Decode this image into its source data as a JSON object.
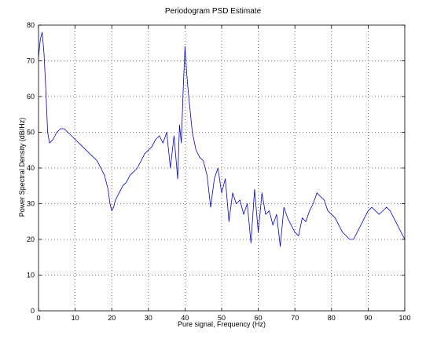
{
  "chart_data": {
    "type": "line",
    "title": "Periodogram PSD Estimate",
    "xlabel": "Pure signal, Frequency (Hz)",
    "ylabel": "Power Spectral Density (dB/Hz)",
    "xlim": [
      0,
      100
    ],
    "ylim": [
      0,
      80
    ],
    "xticks": [
      0,
      10,
      20,
      30,
      40,
      50,
      60,
      70,
      80,
      90,
      100
    ],
    "yticks": [
      0,
      10,
      20,
      30,
      40,
      50,
      60,
      70,
      80
    ],
    "grid": true,
    "line_color": "#0000cc",
    "series": [
      {
        "x": [
          0,
          0.5,
          1,
          1.5,
          2,
          2.5,
          3,
          4,
          5,
          6,
          7,
          8,
          9,
          10,
          11,
          12,
          13,
          14,
          15,
          16,
          17,
          18,
          19,
          19.5,
          20,
          20.5,
          21,
          22,
          23,
          24,
          25,
          26,
          27,
          28,
          29,
          30,
          31,
          32,
          33,
          34,
          35,
          36,
          37,
          38,
          38.5,
          39,
          39.5,
          40,
          40.5,
          41,
          41.5,
          42,
          43,
          44,
          45,
          46,
          47,
          48,
          49,
          50,
          51,
          52,
          53,
          54,
          55,
          56,
          57,
          58,
          59,
          60,
          61,
          62,
          63,
          64,
          65,
          66,
          67,
          68,
          69,
          70,
          71,
          72,
          73,
          74,
          75,
          76,
          77,
          78,
          79,
          80,
          81,
          82,
          83,
          84,
          85,
          86,
          87,
          88,
          89,
          90,
          91,
          92,
          93,
          94,
          95,
          96,
          97,
          98,
          99,
          100
        ],
        "y": [
          71,
          76,
          78,
          72,
          62,
          50,
          47,
          48,
          50,
          51,
          51,
          50,
          49,
          48,
          47,
          46,
          45,
          44,
          43,
          42,
          40,
          38,
          34,
          30,
          28,
          29,
          31,
          33,
          35,
          36,
          38,
          39,
          40,
          42,
          44,
          45,
          46,
          48,
          49,
          47,
          50,
          40,
          49,
          37,
          52,
          47,
          62,
          74,
          66,
          60,
          55,
          50,
          45,
          43,
          42,
          38,
          29,
          37,
          40,
          33,
          37,
          25,
          33,
          30,
          31,
          27,
          30,
          19,
          34,
          22,
          33,
          27,
          28,
          24,
          27,
          18,
          29,
          26,
          24,
          22,
          21,
          26,
          25,
          28,
          30,
          33,
          32,
          31,
          28,
          27,
          26,
          24,
          22,
          21,
          20,
          20,
          22,
          24,
          26,
          28,
          29,
          28,
          27,
          28,
          29,
          28,
          26,
          24,
          22,
          20
        ]
      }
    ]
  }
}
